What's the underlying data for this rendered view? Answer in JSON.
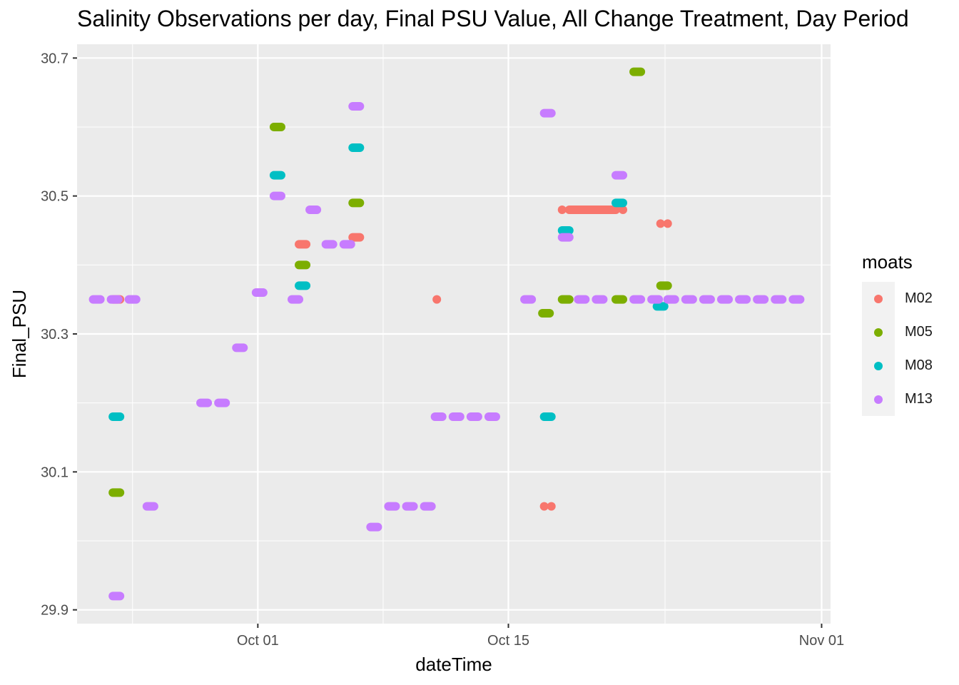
{
  "chart_data": {
    "type": "scatter",
    "title": "Salinity Observations per day, Final PSU Value, All Change Treatment, Day Period",
    "xlabel": "dateTime",
    "ylabel": "Final_PSU",
    "x_ticks": [
      "Oct 01",
      "Oct 15",
      "Nov 01"
    ],
    "x_tick_values": [
      30,
      44,
      61.5
    ],
    "x_range": [
      19.9,
      62
    ],
    "y_ticks": [
      "29.9",
      "30.1",
      "30.3",
      "30.5",
      "30.7"
    ],
    "ylim": [
      29.88,
      30.72
    ],
    "legend_title": "moats",
    "legend_position": "right",
    "grid": true,
    "x_unit": "day index (Oct 1 = 30)",
    "series": [
      {
        "name": "M02",
        "color": "#F8766D",
        "points": [
          [
            21.9,
            30.35
          ],
          [
            22.3,
            30.35
          ],
          [
            32.3,
            30.43
          ],
          [
            32.7,
            30.43
          ],
          [
            35.3,
            30.44
          ],
          [
            35.7,
            30.44
          ],
          [
            40.0,
            30.35
          ],
          [
            46.0,
            30.05
          ],
          [
            46.4,
            30.05
          ],
          [
            47.0,
            30.48
          ],
          [
            47.4,
            30.48
          ],
          [
            50.0,
            30.48
          ],
          [
            50.4,
            30.48
          ],
          [
            52.5,
            30.46
          ],
          [
            52.9,
            30.46
          ]
        ]
      },
      {
        "name": "M05",
        "color": "#7CAE00",
        "points": [
          [
            21.9,
            30.07
          ],
          [
            22.3,
            30.07
          ],
          [
            30.9,
            30.6
          ],
          [
            31.3,
            30.6
          ],
          [
            32.3,
            30.4
          ],
          [
            32.7,
            30.4
          ],
          [
            35.3,
            30.49
          ],
          [
            35.7,
            30.49
          ],
          [
            45.9,
            30.33
          ],
          [
            46.3,
            30.33
          ],
          [
            47.0,
            30.35
          ],
          [
            47.4,
            30.35
          ],
          [
            50.0,
            30.35
          ],
          [
            50.4,
            30.35
          ],
          [
            51.0,
            30.68
          ],
          [
            51.4,
            30.68
          ],
          [
            52.5,
            30.37
          ],
          [
            52.9,
            30.37
          ]
        ]
      },
      {
        "name": "M08",
        "color": "#00BFC4",
        "points": [
          [
            21.9,
            30.18
          ],
          [
            22.3,
            30.18
          ],
          [
            30.9,
            30.53
          ],
          [
            31.3,
            30.53
          ],
          [
            32.3,
            30.37
          ],
          [
            32.7,
            30.37
          ],
          [
            35.3,
            30.57
          ],
          [
            35.7,
            30.57
          ],
          [
            46.0,
            30.18
          ],
          [
            46.4,
            30.18
          ],
          [
            47.0,
            30.45
          ],
          [
            47.4,
            30.45
          ],
          [
            50.0,
            30.49
          ],
          [
            50.4,
            30.49
          ],
          [
            52.3,
            30.34
          ],
          [
            52.7,
            30.34
          ]
        ]
      },
      {
        "name": "M13",
        "color": "#C77CFF",
        "points": [
          [
            20.8,
            30.35
          ],
          [
            21.2,
            30.35
          ],
          [
            21.8,
            30.35
          ],
          [
            22.2,
            30.35
          ],
          [
            22.8,
            30.35
          ],
          [
            23.2,
            30.35
          ],
          [
            23.8,
            30.05
          ],
          [
            24.2,
            30.05
          ],
          [
            21.9,
            29.92
          ],
          [
            22.3,
            29.92
          ],
          [
            26.8,
            30.2
          ],
          [
            27.2,
            30.2
          ],
          [
            27.8,
            30.2
          ],
          [
            28.2,
            30.2
          ],
          [
            28.8,
            30.28
          ],
          [
            29.2,
            30.28
          ],
          [
            29.9,
            30.36
          ],
          [
            30.3,
            30.36
          ],
          [
            30.9,
            30.5
          ],
          [
            31.3,
            30.5
          ],
          [
            31.9,
            30.35
          ],
          [
            32.3,
            30.35
          ],
          [
            32.9,
            30.48
          ],
          [
            33.3,
            30.48
          ],
          [
            33.8,
            30.43
          ],
          [
            34.2,
            30.43
          ],
          [
            34.8,
            30.43
          ],
          [
            35.2,
            30.43
          ],
          [
            35.3,
            30.63
          ],
          [
            35.7,
            30.63
          ],
          [
            36.3,
            30.02
          ],
          [
            36.7,
            30.02
          ],
          [
            37.3,
            30.05
          ],
          [
            37.7,
            30.05
          ],
          [
            38.3,
            30.05
          ],
          [
            38.7,
            30.05
          ],
          [
            39.3,
            30.05
          ],
          [
            39.7,
            30.05
          ],
          [
            39.9,
            30.18
          ],
          [
            40.3,
            30.18
          ],
          [
            40.9,
            30.18
          ],
          [
            41.3,
            30.18
          ],
          [
            41.9,
            30.18
          ],
          [
            42.3,
            30.18
          ],
          [
            42.9,
            30.18
          ],
          [
            43.3,
            30.18
          ],
          [
            44.9,
            30.35
          ],
          [
            45.3,
            30.35
          ],
          [
            46.0,
            30.62
          ],
          [
            46.4,
            30.62
          ],
          [
            47.0,
            30.44
          ],
          [
            47.4,
            30.44
          ],
          [
            47.9,
            30.35
          ],
          [
            48.3,
            30.35
          ],
          [
            48.9,
            30.35
          ],
          [
            49.3,
            30.35
          ],
          [
            50.0,
            30.53
          ],
          [
            50.4,
            30.53
          ],
          [
            51.0,
            30.35
          ],
          [
            51.4,
            30.35
          ],
          [
            52.0,
            30.35
          ],
          [
            52.4,
            30.35
          ],
          [
            52.9,
            30.35
          ],
          [
            53.3,
            30.35
          ],
          [
            53.9,
            30.35
          ],
          [
            54.3,
            30.35
          ],
          [
            54.9,
            30.35
          ],
          [
            55.3,
            30.35
          ],
          [
            55.9,
            30.35
          ],
          [
            56.3,
            30.35
          ],
          [
            56.9,
            30.35
          ],
          [
            57.3,
            30.35
          ],
          [
            57.9,
            30.35
          ],
          [
            58.3,
            30.35
          ],
          [
            58.9,
            30.35
          ],
          [
            59.3,
            30.35
          ],
          [
            59.9,
            30.35
          ],
          [
            60.3,
            30.35
          ]
        ]
      }
    ]
  }
}
